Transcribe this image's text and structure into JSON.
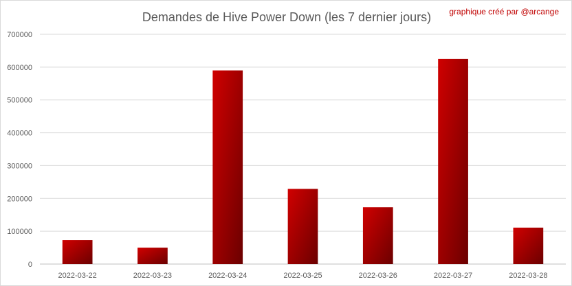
{
  "credit": "graphique créé par @arcange",
  "colors": {
    "bar_light": "#d00000",
    "bar_dark": "#6b0000",
    "grid": "#d9d9d9",
    "text": "#595959",
    "credit": "#c00000"
  },
  "chart_data": {
    "type": "bar",
    "title": "Demandes de Hive Power Down (les 7 dernier jours)",
    "xlabel": "",
    "ylabel": "",
    "categories": [
      "2022-03-22",
      "2022-03-23",
      "2022-03-24",
      "2022-03-25",
      "2022-03-26",
      "2022-03-27",
      "2022-03-28"
    ],
    "values": [
      73000,
      50000,
      590000,
      229000,
      173000,
      625000,
      111000
    ],
    "ylim": [
      0,
      700000
    ],
    "yticks": [
      "0",
      "100000",
      "200000",
      "300000",
      "400000",
      "500000",
      "600000",
      "700000"
    ],
    "grid": true,
    "legend": "none"
  }
}
